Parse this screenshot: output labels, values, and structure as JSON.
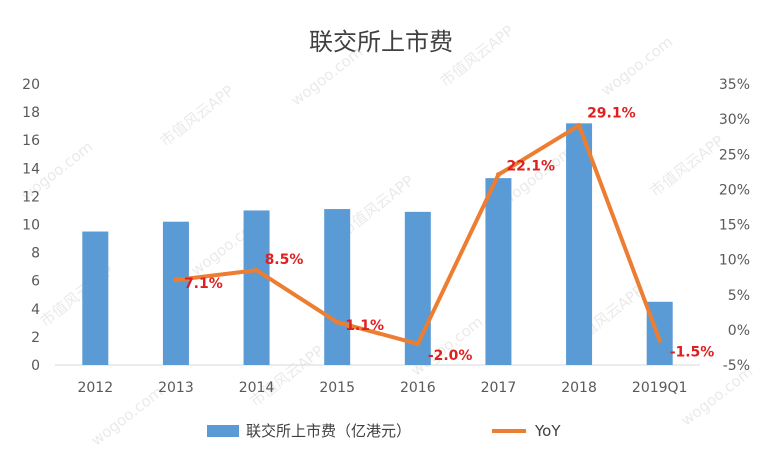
{
  "chart_data": {
    "type": "bar",
    "title": "联交所上市费",
    "categories": [
      "2012",
      "2013",
      "2014",
      "2015",
      "2016",
      "2017",
      "2018",
      "2019Q1"
    ],
    "series": [
      {
        "name": "联交所上市费（亿港元）",
        "type": "bar",
        "axis": "left",
        "color": "#5b9bd5",
        "values": [
          9.5,
          10.2,
          11.0,
          11.1,
          10.9,
          13.3,
          17.2,
          4.5
        ]
      },
      {
        "name": "YoY",
        "type": "line",
        "axis": "right",
        "color": "#ed7d31",
        "values": [
          null,
          7.1,
          8.5,
          1.1,
          -2.0,
          22.1,
          29.1,
          -1.5
        ],
        "data_labels": [
          "",
          "7.1%",
          "8.5%",
          "1.1%",
          "-2.0%",
          "22.1%",
          "29.1%",
          "-1.5%"
        ]
      }
    ],
    "y_left": {
      "min": 0,
      "max": 20,
      "step": 2,
      "ticks": [
        "0",
        "2",
        "4",
        "6",
        "8",
        "10",
        "12",
        "14",
        "16",
        "18",
        "20"
      ]
    },
    "y_right": {
      "min": -5,
      "max": 35,
      "step": 5,
      "ticks": [
        "-5%",
        "0%",
        "5%",
        "10%",
        "15%",
        "20%",
        "25%",
        "30%",
        "35%"
      ]
    },
    "label_color": "#e02020",
    "grid": false,
    "legend_position": "bottom"
  },
  "watermark": {
    "texts": [
      "wogoo.com",
      "市值风云APP"
    ]
  }
}
